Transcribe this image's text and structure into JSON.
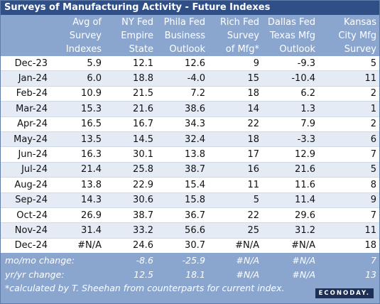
{
  "title": "Surveys of Manufacturing Activity - Future Indexes",
  "headers": [
    "",
    "Avg of Survey Indexes",
    "NY Fed Empire State",
    "Phila Fed Business Outlook",
    "Rich Fed Survey of Mfg*",
    "Dallas Fed Texas Mfg Outlook",
    "Kansas City Mfg Survey"
  ],
  "header_lines": [
    [
      "",
      "",
      ""
    ],
    [
      "Avg of",
      "Survey",
      "Indexes"
    ],
    [
      "NY Fed",
      "Empire",
      "State"
    ],
    [
      "Phila Fed",
      "Business",
      "Outlook"
    ],
    [
      "Rich Fed",
      "Survey",
      "of Mfg*"
    ],
    [
      "Dallas Fed",
      "Texas Mfg",
      "Outlook"
    ],
    [
      "Kansas",
      "City Mfg",
      "Survey"
    ]
  ],
  "rows": [
    [
      "Dec-23",
      "5.9",
      "12.1",
      "12.6",
      "9",
      "-9.3",
      "5"
    ],
    [
      "Jan-24",
      "6.0",
      "18.8",
      "-4.0",
      "15",
      "-10.4",
      "11"
    ],
    [
      "Feb-24",
      "10.9",
      "21.5",
      "7.2",
      "18",
      "6.2",
      "2"
    ],
    [
      "Mar-24",
      "15.3",
      "21.6",
      "38.6",
      "14",
      "1.3",
      "1"
    ],
    [
      "Apr-24",
      "16.5",
      "16.7",
      "34.3",
      "22",
      "7.9",
      "2"
    ],
    [
      "May-24",
      "13.5",
      "14.5",
      "32.4",
      "18",
      "-3.3",
      "6"
    ],
    [
      "Jun-24",
      "16.3",
      "30.1",
      "13.8",
      "17",
      "12.9",
      "7"
    ],
    [
      "Jul-24",
      "21.4",
      "25.8",
      "38.7",
      "16",
      "21.6",
      "5"
    ],
    [
      "Aug-24",
      "13.8",
      "22.9",
      "15.4",
      "11",
      "11.6",
      "8"
    ],
    [
      "Sep-24",
      "14.3",
      "30.6",
      "15.8",
      "5",
      "11.4",
      "9"
    ],
    [
      "Oct-24",
      "26.9",
      "38.7",
      "36.7",
      "22",
      "29.6",
      "7"
    ],
    [
      "Nov-24",
      "31.4",
      "33.2",
      "56.6",
      "25",
      "31.2",
      "11"
    ],
    [
      "Dec-24",
      "#N/A",
      "24.6",
      "30.7",
      "#N/A",
      "#N/A",
      "18"
    ]
  ],
  "summary": [
    [
      "mo/mo change:",
      "",
      "-8.6",
      "-25.9",
      "#N/A",
      "#N/A",
      "7"
    ],
    [
      "yr/yr change:",
      "",
      "12.5",
      "18.1",
      "#N/A",
      "#N/A",
      "13"
    ]
  ],
  "footnote": "*calculated by T. Sheehan from counterparts for current index.",
  "logo": "ECONODAY.",
  "colors": {
    "title_bg": "#2f4f86",
    "header_bg": "#8aa6cf",
    "row_alt": "#e4ebf5",
    "row": "#ffffff"
  }
}
